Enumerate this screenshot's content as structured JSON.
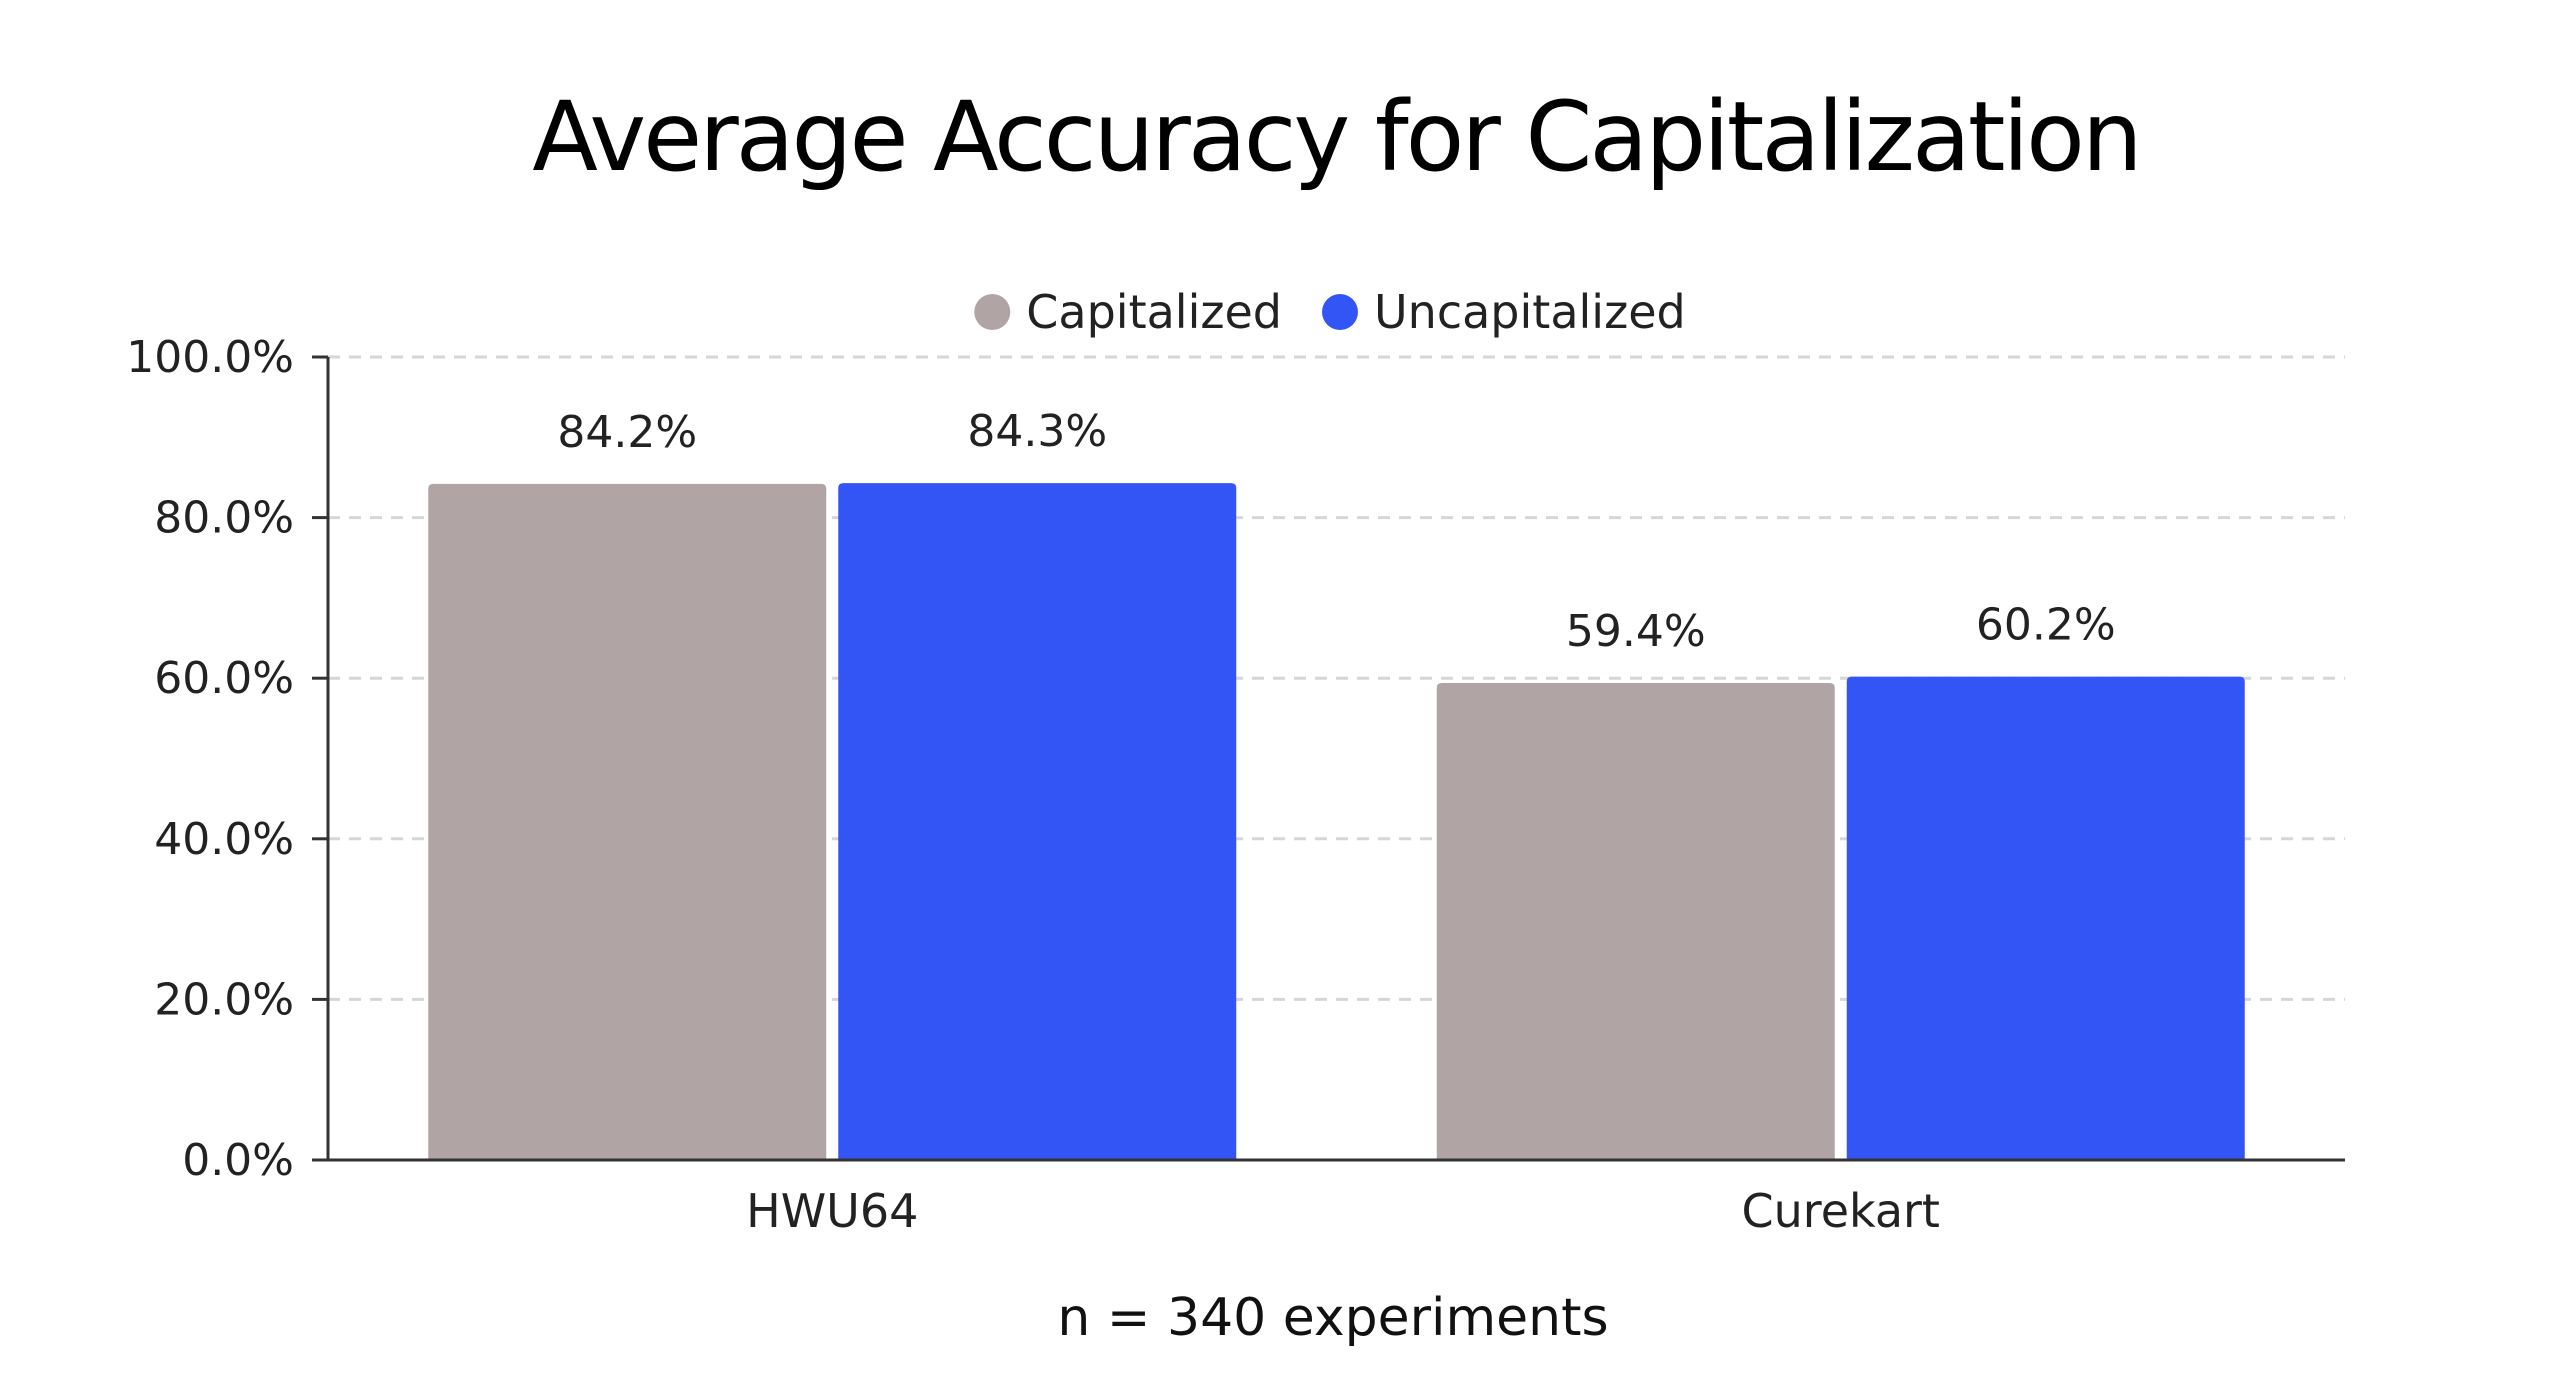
{
  "chart_data": {
    "type": "bar",
    "title": "Average Accuracy for Capitalization",
    "categories": [
      "HWU64",
      "Curekart"
    ],
    "series": [
      {
        "name": "Capitalized",
        "color": "#b0a4a4",
        "values": [
          84.2,
          59.4
        ],
        "labels": [
          "84.2%",
          "59.4%"
        ]
      },
      {
        "name": "Uncapitalized",
        "color": "#3355f6",
        "values": [
          84.3,
          60.2
        ],
        "labels": [
          "84.3%",
          "60.2%"
        ]
      }
    ],
    "ylim": [
      0,
      100
    ],
    "yticks": [
      0,
      20,
      40,
      60,
      80,
      100
    ],
    "ytick_labels": [
      "0.0%",
      "20.0%",
      "40.0%",
      "60.0%",
      "80.0%",
      "100.0%"
    ],
    "xlabel": "",
    "ylabel": "",
    "grid": true,
    "legend_position": "top-center",
    "footnote": "n = 340 experiments"
  }
}
